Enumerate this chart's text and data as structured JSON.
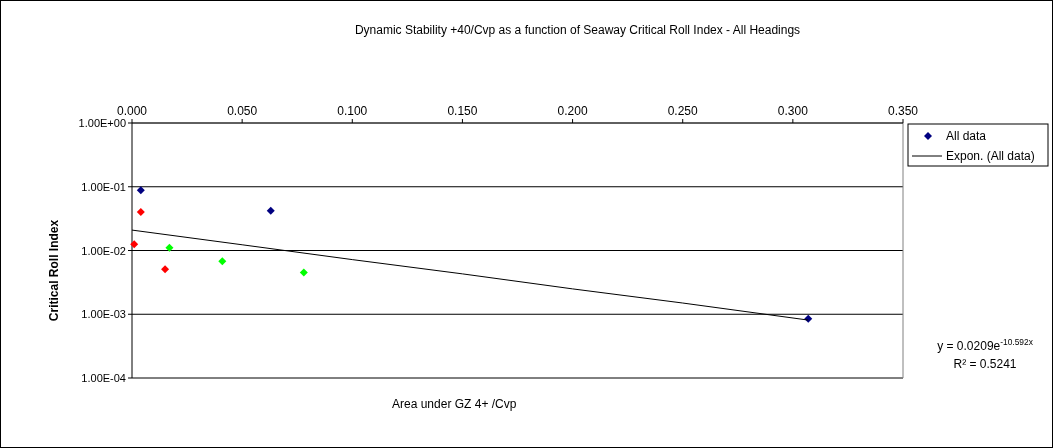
{
  "chart_data": {
    "type": "scatter",
    "title": "Dynamic Stability +40/Cvp as a function of Seaway Critical Roll Index - All Headings",
    "xlabel": "Area under GZ 4+ /Cvp",
    "ylabel": "Critical Roll Index",
    "series": [
      {
        "name": "All data",
        "marker": "diamond",
        "color": "#000080",
        "x": [
          0.004,
          0.004,
          0.063,
          0.001,
          0.017,
          0.015,
          0.041,
          0.078,
          0.307
        ],
        "values": [
          0.088,
          0.04,
          0.042,
          0.0125,
          0.011,
          0.0051,
          0.0068,
          0.0045,
          0.00085
        ],
        "colors": [
          "#000080",
          "#ff0000",
          "#000080",
          "#ff0000",
          "#00ff00",
          "#ff0000",
          "#00ff00",
          "#00ff00",
          "#000080"
        ]
      },
      {
        "name": "Expon. (All data)",
        "type": "line",
        "marker": "none",
        "color": "#000000",
        "x": [
          0,
          0.05,
          0.1,
          0.15,
          0.2,
          0.25,
          0.307
        ],
        "values": [
          0.0209,
          0.0123,
          0.0072,
          0.0043,
          0.0025,
          0.0015,
          0.00081
        ]
      }
    ],
    "xlim": [
      0,
      0.35
    ],
    "xticks": [
      {
        "value": 0,
        "label": "0.000"
      },
      {
        "value": 0.05,
        "label": "0.050"
      },
      {
        "value": 0.1,
        "label": "0.100"
      },
      {
        "value": 0.15,
        "label": "0.150"
      },
      {
        "value": 0.2,
        "label": "0.200"
      },
      {
        "value": 0.25,
        "label": "0.250"
      },
      {
        "value": 0.3,
        "label": "0.300"
      },
      {
        "value": 0.35,
        "label": "0.350"
      }
    ],
    "ylim": [
      0.0001,
      1
    ],
    "yticks": [
      {
        "value": 1,
        "label": "1.00E+00"
      },
      {
        "value": 0.1,
        "label": "1.00E-01"
      },
      {
        "value": 0.01,
        "label": "1.00E-02"
      },
      {
        "value": 0.001,
        "label": "1.00E-03"
      },
      {
        "value": 0.0001,
        "label": "1.00E-04"
      }
    ],
    "log": "y",
    "grid": "y",
    "legend": "top right",
    "annotations": [
      "y = 0.0209e$^{-10.592x}$",
      "R² = 0.5241"
    ]
  }
}
